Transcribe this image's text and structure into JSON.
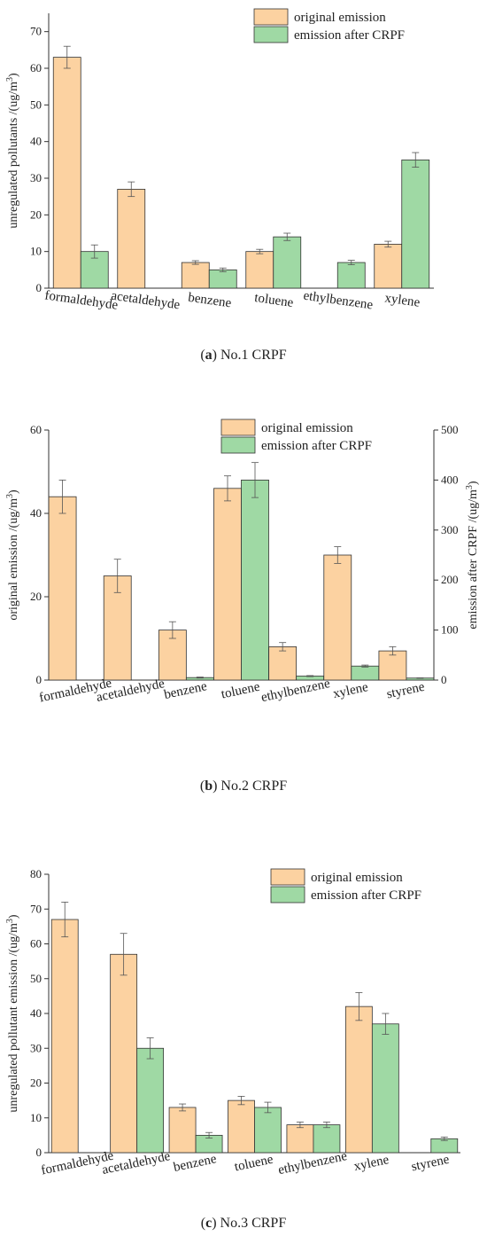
{
  "colors": {
    "original": "#fcd2a1",
    "after": "#9fd9a4",
    "bar_stroke": "#333333",
    "error": "#555555"
  },
  "chart_data": [
    {
      "type": "bar",
      "panel_letter": "a",
      "caption": "No.1 CRPF",
      "ylabel": "unregulated pollutants /(ug/m³)",
      "ylim": [
        0,
        75
      ],
      "yticks": [
        0,
        10,
        20,
        30,
        40,
        50,
        60,
        70
      ],
      "categories": [
        "formaldehyde",
        "acetaldehyde",
        "benzene",
        "toluene",
        "ethylbenzene",
        "xylene"
      ],
      "legend_position": "top-right",
      "series": [
        {
          "name": "original emission",
          "values": [
            63,
            27,
            7,
            10,
            null,
            12
          ],
          "errors": [
            3,
            2,
            0.5,
            0.6,
            null,
            0.8
          ]
        },
        {
          "name": "emission after CRPF",
          "values": [
            10,
            null,
            5,
            14,
            7,
            35
          ],
          "errors": [
            1.8,
            null,
            0.5,
            1,
            0.6,
            2
          ]
        }
      ]
    },
    {
      "type": "bar",
      "panel_letter": "b",
      "caption": "No.2 CRPF",
      "ylabel": "original emission /(ug/m³)",
      "ylabel_right": "emission after CRPF /(ug/m³)",
      "ylim": [
        0,
        60
      ],
      "yticks": [
        0,
        20,
        40,
        60
      ],
      "ylim_right": [
        0,
        500
      ],
      "yticks_right": [
        0,
        100,
        200,
        300,
        400,
        500
      ],
      "categories": [
        "formaldehyde",
        "acetaldehyde",
        "benzene",
        "toluene",
        "ethylbenzene",
        "xylene",
        "styrene"
      ],
      "legend_position": "top-right",
      "series": [
        {
          "name": "original emission",
          "axis": "left",
          "values": [
            44,
            25,
            12,
            46,
            8,
            30,
            7
          ],
          "errors": [
            4,
            4,
            2,
            3,
            1,
            2,
            1
          ]
        },
        {
          "name": "emission after CRPF",
          "axis": "right",
          "values": [
            null,
            null,
            5,
            400,
            8,
            28,
            4
          ],
          "errors": [
            null,
            null,
            1,
            35,
            1,
            2,
            0.5
          ]
        }
      ]
    },
    {
      "type": "bar",
      "panel_letter": "c",
      "caption": "No.3 CRPF",
      "ylabel": "unregulated pollutant emission /(ug/m³)",
      "ylim": [
        0,
        80
      ],
      "yticks": [
        0,
        10,
        20,
        30,
        40,
        50,
        60,
        70,
        80
      ],
      "categories": [
        "formaldehyde",
        "acetaldehyde",
        "benzene",
        "toluene",
        "ethylbenzene",
        "xylene",
        "styrene"
      ],
      "legend_position": "top-right",
      "series": [
        {
          "name": "original emission",
          "values": [
            67,
            57,
            13,
            15,
            8,
            42,
            null
          ],
          "errors": [
            5,
            6,
            1,
            1.2,
            0.8,
            4,
            null
          ]
        },
        {
          "name": "emission after CRPF",
          "values": [
            null,
            30,
            5,
            13,
            8,
            37,
            4
          ],
          "errors": [
            null,
            3,
            0.8,
            1.5,
            0.8,
            3,
            0.5
          ]
        }
      ]
    }
  ]
}
